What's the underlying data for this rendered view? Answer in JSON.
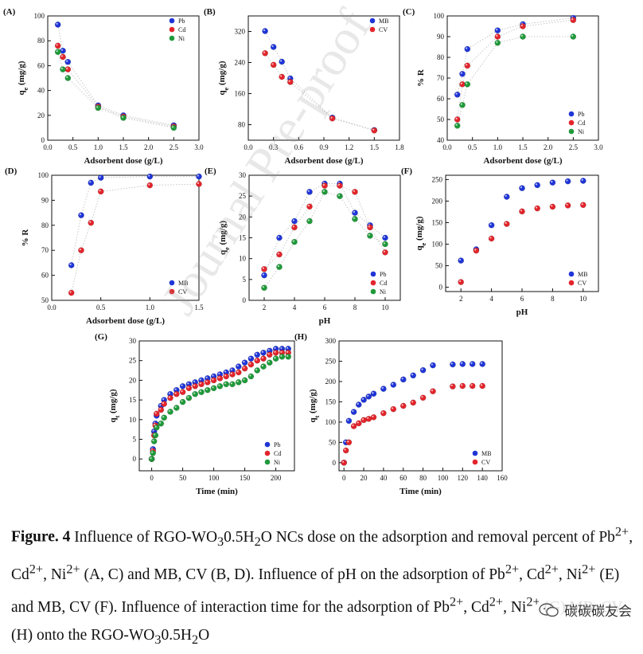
{
  "chart_data": [
    {
      "id": "A",
      "panel_label": "(A)",
      "type": "scatter",
      "xlabel": "Adsorbent dose (g/L)",
      "ylabel": "qe (mg/g)",
      "xlim": [
        0,
        3.0
      ],
      "ylim": [
        0,
        100
      ],
      "xticks": [
        "0.0",
        "0.5",
        "1.0",
        "1.5",
        "2.0",
        "2.5",
        "3.0"
      ],
      "yticks": [
        "0",
        "20",
        "40",
        "60",
        "80",
        "100"
      ],
      "legend": "top-right",
      "fit_curve": true,
      "series": [
        {
          "name": "Pb",
          "color": "#1f35d8",
          "x": [
            0.2,
            0.3,
            0.4,
            1.0,
            1.5,
            2.5
          ],
          "y": [
            93,
            72,
            63,
            28,
            20,
            12
          ]
        },
        {
          "name": "Cd",
          "color": "#e3242b",
          "x": [
            0.2,
            0.3,
            0.4,
            1.0,
            1.5,
            2.5
          ],
          "y": [
            76,
            67,
            57,
            27,
            19,
            11
          ]
        },
        {
          "name": "Ni",
          "color": "#1f9a3a",
          "x": [
            0.2,
            0.3,
            0.4,
            1.0,
            1.5,
            2.5
          ],
          "y": [
            71,
            57,
            50,
            26,
            18,
            10
          ]
        }
      ]
    },
    {
      "id": "B",
      "panel_label": "(B)",
      "type": "scatter",
      "xlabel": "Adsorbent dose (g/L)",
      "ylabel": "qe (mg/g)",
      "xlim": [
        0,
        1.8
      ],
      "ylim": [
        40,
        360
      ],
      "xticks": [
        "0.0",
        "0.3",
        "0.6",
        "0.9",
        "1.2",
        "1.5",
        "1.8"
      ],
      "yticks": [
        "80",
        "160",
        "240",
        "320"
      ],
      "legend": "top-right",
      "fit_curve": true,
      "series": [
        {
          "name": "MB",
          "color": "#1f35d8",
          "x": [
            0.2,
            0.3,
            0.4,
            0.5,
            1.0,
            1.5
          ],
          "y": [
            321,
            280,
            242,
            199,
            98,
            66
          ]
        },
        {
          "name": "CV",
          "color": "#e3242b",
          "x": [
            0.2,
            0.3,
            0.4,
            0.5,
            1.0,
            1.5
          ],
          "y": [
            264,
            234,
            203,
            190,
            96,
            65
          ]
        }
      ]
    },
    {
      "id": "C",
      "panel_label": "(C)",
      "type": "scatter",
      "xlabel": "Adsorbent dose (g/L)",
      "ylabel": "% R",
      "xlim": [
        0,
        3.0
      ],
      "ylim": [
        40,
        100
      ],
      "xticks": [
        "0.0",
        "0.5",
        "1.0",
        "1.5",
        "2.0",
        "2.5",
        "3.0"
      ],
      "yticks": [
        "40",
        "50",
        "60",
        "70",
        "80",
        "90",
        "100"
      ],
      "legend": "bottom-right",
      "fit_curve": true,
      "series": [
        {
          "name": "Pb",
          "color": "#1f35d8",
          "x": [
            0.2,
            0.3,
            0.4,
            1.0,
            1.5,
            2.5
          ],
          "y": [
            62,
            72,
            84,
            93,
            96,
            99
          ]
        },
        {
          "name": "Cd",
          "color": "#e3242b",
          "x": [
            0.2,
            0.3,
            0.4,
            1.0,
            1.5,
            2.5
          ],
          "y": [
            50,
            67,
            76,
            90,
            95,
            98
          ]
        },
        {
          "name": "Ni",
          "color": "#1f9a3a",
          "x": [
            0.2,
            0.3,
            0.4,
            1.0,
            1.5,
            2.5
          ],
          "y": [
            47,
            57,
            67,
            87,
            90,
            90
          ]
        }
      ]
    },
    {
      "id": "D",
      "panel_label": "(D)",
      "type": "scatter",
      "xlabel": "Adsorbent dose (g/L)",
      "ylabel": "% R",
      "xlim": [
        0,
        1.5
      ],
      "ylim": [
        50,
        100
      ],
      "xticks": [
        "0.0",
        "0.5",
        "1.0",
        "1.5"
      ],
      "yticks": [
        "50",
        "60",
        "70",
        "80",
        "90",
        "100"
      ],
      "legend": "bottom-right",
      "fit_curve": true,
      "series": [
        {
          "name": "MB",
          "color": "#1f35d8",
          "x": [
            0.2,
            0.3,
            0.4,
            0.5,
            1.0,
            1.5
          ],
          "y": [
            64,
            84,
            97,
            99,
            99.5,
            99.5
          ]
        },
        {
          "name": "CV",
          "color": "#e3242b",
          "x": [
            0.2,
            0.3,
            0.4,
            0.5,
            1.0,
            1.5
          ],
          "y": [
            53,
            70,
            81,
            93.5,
            96,
            96.5
          ]
        }
      ]
    },
    {
      "id": "E",
      "panel_label": "(E)",
      "type": "scatter",
      "xlabel": "pH",
      "ylabel": "qe (mg/g)",
      "xlim": [
        1,
        11
      ],
      "ylim": [
        0,
        30
      ],
      "xticks": [
        "2",
        "4",
        "6",
        "8",
        "10"
      ],
      "yticks": [
        "0",
        "5",
        "10",
        "15",
        "20",
        "25",
        "30"
      ],
      "legend": "bottom-right",
      "fit_curve": true,
      "series": [
        {
          "name": "Pb",
          "color": "#1f35d8",
          "x": [
            2,
            3,
            4,
            5,
            6,
            7,
            8,
            9,
            10
          ],
          "y": [
            6,
            15,
            19,
            26,
            28,
            28,
            21,
            18,
            15
          ]
        },
        {
          "name": "Cd",
          "color": "#e3242b",
          "x": [
            2,
            3,
            4,
            5,
            6,
            7,
            8,
            9,
            10
          ],
          "y": [
            7.5,
            11,
            17.5,
            22.5,
            27.5,
            27.5,
            26,
            17.5,
            11.5
          ]
        },
        {
          "name": "Ni",
          "color": "#1f9a3a",
          "x": [
            2,
            3,
            4,
            5,
            6,
            7,
            8,
            9,
            10
          ],
          "y": [
            3,
            8,
            14,
            19,
            26,
            25,
            19.5,
            15.5,
            13.5
          ]
        }
      ]
    },
    {
      "id": "F",
      "panel_label": "(F)",
      "type": "scatter",
      "xlabel": "pH",
      "ylabel": "qe (mg/g)",
      "xlim": [
        1,
        11
      ],
      "ylim": [
        -10,
        260
      ],
      "xticks": [
        "2",
        "4",
        "6",
        "8",
        "10"
      ],
      "yticks": [
        "0",
        "50",
        "100",
        "150",
        "200",
        "250"
      ],
      "legend": "bottom-right",
      "fit_curve": false,
      "series": [
        {
          "name": "MB",
          "color": "#1f35d8",
          "x": [
            2,
            3,
            4,
            5,
            6,
            7,
            8,
            9,
            10
          ],
          "y": [
            62,
            88,
            144,
            210,
            230,
            237,
            243,
            246,
            247
          ]
        },
        {
          "name": "CV",
          "color": "#e3242b",
          "x": [
            2,
            3,
            4,
            5,
            6,
            7,
            8,
            9,
            10
          ],
          "y": [
            12,
            85,
            113,
            147,
            176,
            183,
            187,
            190,
            191
          ]
        }
      ]
    },
    {
      "id": "G",
      "panel_label": "(G)",
      "type": "scatter",
      "xlabel": "Time (min)",
      "ylabel": "qt (mg/g)",
      "xlim": [
        -20,
        230
      ],
      "ylim": [
        -3,
        30
      ],
      "xticks": [
        "0",
        "50",
        "100",
        "150",
        "200"
      ],
      "yticks": [
        "0",
        "5",
        "10",
        "15",
        "20",
        "25",
        "30"
      ],
      "legend": "bottom-right",
      "fit_curve": false,
      "series": [
        {
          "name": "Pb",
          "color": "#1f35d8",
          "x": [
            0,
            2,
            4,
            6,
            8,
            15,
            20,
            30,
            40,
            50,
            60,
            70,
            80,
            90,
            100,
            110,
            120,
            130,
            140,
            150,
            160,
            170,
            180,
            190,
            200,
            210,
            220
          ],
          "y": [
            0,
            2.5,
            7,
            9,
            11,
            13.5,
            15,
            16.5,
            17.5,
            18.5,
            19,
            19.5,
            20,
            20.5,
            21,
            21.5,
            22,
            22.5,
            23.5,
            24.5,
            25.5,
            26.5,
            27,
            27.5,
            28,
            28,
            28
          ]
        },
        {
          "name": "Cd",
          "color": "#e3242b",
          "x": [
            0,
            2,
            4,
            6,
            8,
            15,
            20,
            30,
            40,
            50,
            60,
            70,
            80,
            90,
            100,
            110,
            120,
            130,
            140,
            150,
            160,
            170,
            180,
            190,
            200,
            210,
            220
          ],
          "y": [
            0,
            2,
            6,
            8.5,
            11.5,
            12.5,
            14,
            15.5,
            16.5,
            17,
            18,
            18.5,
            19,
            19.5,
            20,
            20.5,
            21,
            21.5,
            22,
            23,
            24,
            25,
            25.5,
            26.5,
            27,
            27,
            27
          ]
        },
        {
          "name": "Ni",
          "color": "#1f9a3a",
          "x": [
            0,
            2,
            4,
            6,
            8,
            15,
            20,
            30,
            40,
            50,
            60,
            70,
            80,
            90,
            100,
            110,
            120,
            130,
            140,
            150,
            160,
            170,
            180,
            190,
            200,
            210,
            220
          ],
          "y": [
            0,
            1.5,
            4.5,
            6,
            8,
            9,
            10.5,
            12,
            13,
            14.5,
            15.5,
            16.5,
            17,
            17.5,
            18,
            18.5,
            19,
            19,
            19.5,
            20,
            21,
            22.5,
            23.5,
            24.5,
            25.5,
            26,
            26
          ]
        }
      ]
    },
    {
      "id": "H",
      "panel_label": "(H)",
      "type": "scatter",
      "xlabel": "Time (min)",
      "ylabel": "qt (mg/g)",
      "xlim": [
        -5,
        160
      ],
      "ylim": [
        -20,
        300
      ],
      "xticks": [
        "0",
        "20",
        "40",
        "60",
        "80",
        "100",
        "120",
        "140",
        "160"
      ],
      "yticks": [
        "0",
        "50",
        "100",
        "150",
        "200",
        "250",
        "300"
      ],
      "legend": "bottom-right",
      "fit_curve": false,
      "series": [
        {
          "name": "MB",
          "color": "#1f35d8",
          "x": [
            0,
            2,
            5,
            10,
            15,
            20,
            25,
            30,
            40,
            50,
            60,
            70,
            80,
            90,
            110,
            120,
            130,
            140
          ],
          "y": [
            0,
            50,
            103,
            125,
            143,
            155,
            163,
            170,
            182,
            192,
            205,
            215,
            228,
            240,
            242,
            243,
            243,
            243
          ]
        },
        {
          "name": "CV",
          "color": "#e3242b",
          "x": [
            0,
            2,
            5,
            10,
            15,
            20,
            25,
            30,
            40,
            50,
            60,
            70,
            80,
            90,
            110,
            120,
            130,
            140
          ],
          "y": [
            0,
            30,
            50,
            90,
            97,
            105,
            108,
            112,
            122,
            132,
            140,
            148,
            160,
            176,
            188,
            189,
            189,
            189
          ]
        }
      ]
    }
  ],
  "caption": {
    "label": "Figure. 4",
    "text": " Influence of RGO-WO30.5H2O NCs dose on the adsorption and removal percent of Pb2+, Cd2+, Ni2+ (A, C) and MB, CV (B, D). Influence of pH on the adsorption of Pb2+, Cd2+, Ni2+ (E) and MB, CV (F). Influence of interaction time for the adsorption of Pb2+, Cd2+, Ni2+ (G) MB, CV (H) onto the RGO-WO30.5H2O"
  },
  "watermark": "Journal Pre-proof",
  "brand": {
    "text": "碳碳碳友会",
    "icon": "wechat-icon"
  }
}
